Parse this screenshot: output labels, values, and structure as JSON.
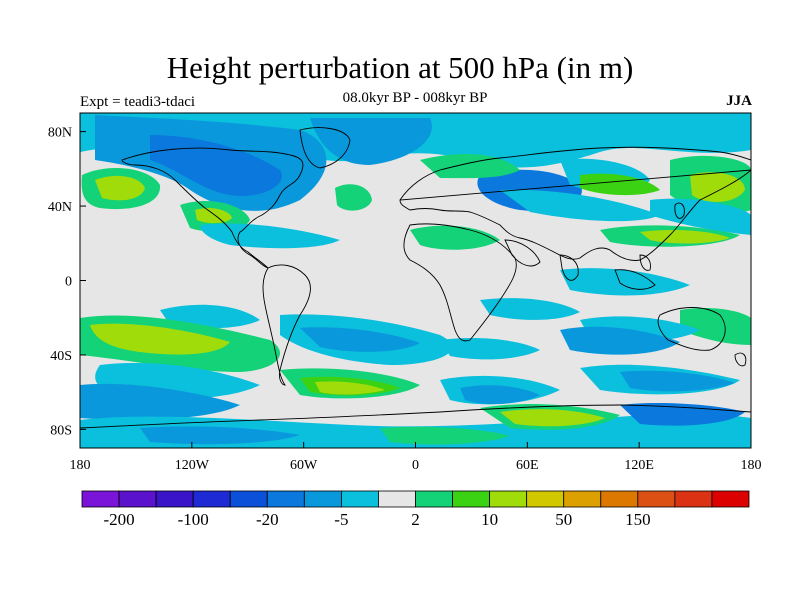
{
  "header": {
    "title": "Height perturbation at 500 hPa (in m)",
    "subtitle": "08.0kyr BP - 008kyr BP",
    "left_label": "Expt = teadi3-tdaci",
    "right_label": "JJA"
  },
  "map": {
    "lat_ticks": [
      {
        "lat": 80,
        "label": "80N"
      },
      {
        "lat": 40,
        "label": "40N"
      },
      {
        "lat": 0,
        "label": "0"
      },
      {
        "lat": -40,
        "label": "40S"
      },
      {
        "lat": -80,
        "label": "80S"
      }
    ],
    "lon_ticks": [
      {
        "lon": -180,
        "label": "180"
      },
      {
        "lon": -120,
        "label": "120W"
      },
      {
        "lon": -60,
        "label": "60W"
      },
      {
        "lon": 0,
        "label": "0"
      },
      {
        "lon": 60,
        "label": "60E"
      },
      {
        "lon": 120,
        "label": "120E"
      },
      {
        "lon": 180,
        "label": "180"
      }
    ],
    "background_color": "#e6e6e6"
  },
  "colorbar": {
    "colors": [
      "#7a14d8",
      "#5a12cc",
      "#3a14c8",
      "#1e2ad4",
      "#0a50d8",
      "#0a78dc",
      "#0a98dc",
      "#0ac0dc",
      "#e6e6e6",
      "#14d278",
      "#3cd214",
      "#a0dc0a",
      "#d2c800",
      "#dca000",
      "#dc7800",
      "#dc5014",
      "#dc3214",
      "#dc0000"
    ],
    "labels": [
      {
        "after_box": 1,
        "text": "-200"
      },
      {
        "after_box": 3,
        "text": "-100"
      },
      {
        "after_box": 5,
        "text": "-20"
      },
      {
        "after_box": 7,
        "text": "-5"
      },
      {
        "after_box": 9,
        "text": "2"
      },
      {
        "after_box": 11,
        "text": "10"
      },
      {
        "after_box": 13,
        "text": "50"
      },
      {
        "after_box": 15,
        "text": "150"
      }
    ]
  }
}
